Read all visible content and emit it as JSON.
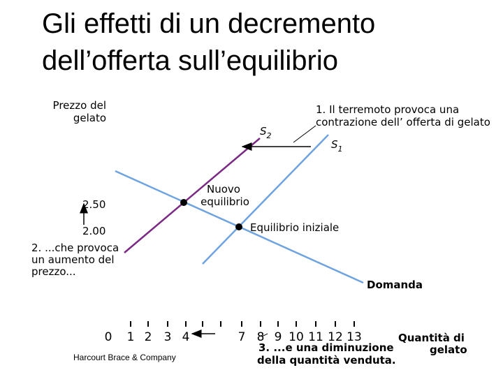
{
  "header": {
    "title": [
      "Gli effetti di un decremento",
      "dell’offerta sull’equilibrio"
    ]
  },
  "diagram": {
    "y_axis_label": [
      "Prezzo del",
      "gelato"
    ],
    "x_axis_label": [
      "Quantità di",
      "gelato"
    ],
    "supply_new": {
      "label": "S",
      "sub": "2"
    },
    "supply_old": {
      "label": "S",
      "sub": "1"
    },
    "demand_label": "Domanda",
    "new_equilibrium": [
      "Nuovo",
      "equilibrio"
    ],
    "initial_equilibrium": "Equilibrio iniziale",
    "price_labels": [
      "2.50",
      "2.00"
    ],
    "quantity_labels": [
      "0",
      "1",
      "2",
      "3",
      "4",
      "7",
      "8",
      "9",
      "10",
      "11",
      "12",
      "13"
    ],
    "note_1": [
      "1. Il terremoto provoca una",
      "contrazione dell’  offerta di gelato"
    ],
    "note_2": [
      "2. ...che provoca",
      "un aumento del",
      "prezzo..."
    ],
    "note_3": [
      "3. ...e una diminuzione",
      "della quantità venduta."
    ]
  },
  "footer": {
    "credit": "Harcourt Brace & Company"
  }
}
